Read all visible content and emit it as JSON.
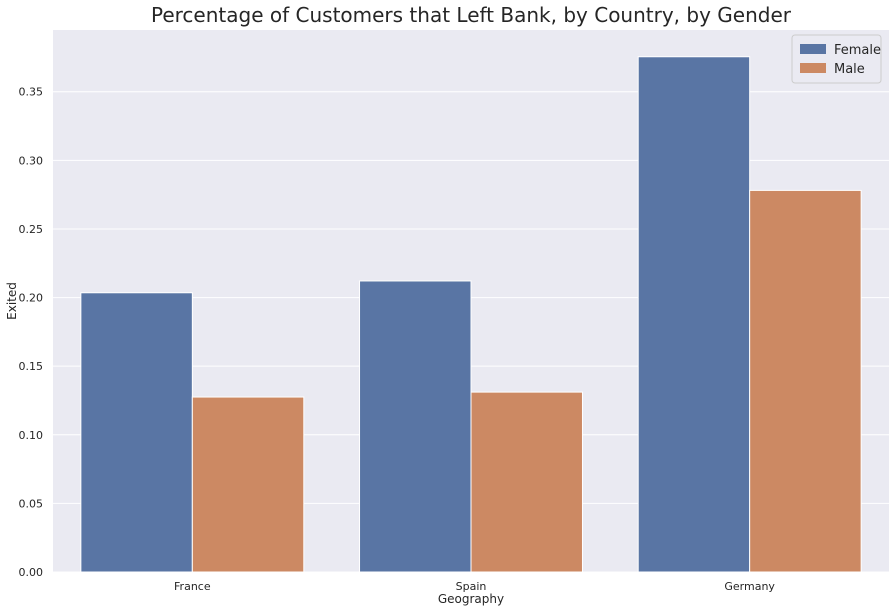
{
  "chart_data": {
    "type": "bar",
    "title": "Percentage of Customers that Left Bank, by Country, by Gender",
    "xlabel": "Geography",
    "ylabel": "Exited",
    "categories": [
      "France",
      "Spain",
      "Germany"
    ],
    "series": [
      {
        "name": "Female",
        "color": "#5975a4",
        "values": [
          0.2035,
          0.2121,
          0.3755
        ]
      },
      {
        "name": "Male",
        "color": "#cc8963",
        "values": [
          0.1275,
          0.1311,
          0.2781
        ]
      }
    ],
    "ylim": [
      0,
      0.395
    ],
    "yticks": [
      "0.00",
      "0.05",
      "0.10",
      "0.15",
      "0.20",
      "0.25",
      "0.30",
      "0.35"
    ],
    "grid": true,
    "legend": "top-right",
    "background": "#eaeaf2",
    "grid_color": "#ffffff"
  }
}
